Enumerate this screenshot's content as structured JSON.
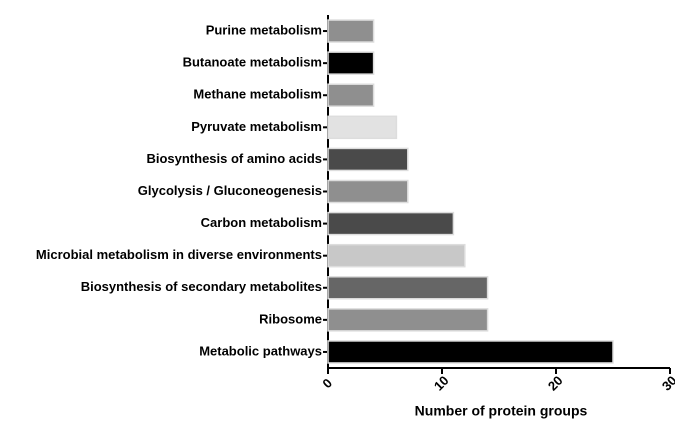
{
  "chart_data": {
    "type": "hbar",
    "x_label": "Number of protein groups",
    "categories": [
      "Purine metabolism",
      "Butanoate metabolism",
      "Methane metabolism",
      "Pyruvate metabolism",
      "Biosynthesis of amino acids",
      "Glycolysis / Gluconeogenesis",
      "Carbon metabolism",
      "Microbial metabolism in diverse environments",
      "Biosynthesis of secondary metabolites",
      "Ribosome",
      "Metabolic pathways"
    ],
    "values": [
      4,
      4,
      4,
      6,
      7,
      7,
      11,
      12,
      14,
      14,
      25
    ],
    "colors": [
      "#8f8f8f",
      "#000000",
      "#8f8f8f",
      "#e2e2e2",
      "#4a4a4a",
      "#8f8f8f",
      "#4a4a4a",
      "#c8c8c8",
      "#666666",
      "#8f8f8f",
      "#000000"
    ],
    "xlim": [
      0,
      30
    ],
    "xticks": [
      0,
      10,
      20,
      30
    ]
  }
}
